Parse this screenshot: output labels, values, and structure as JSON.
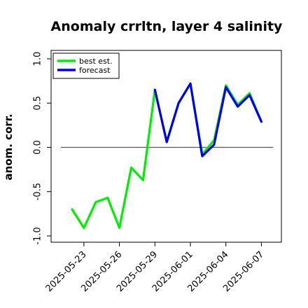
{
  "chart_data": {
    "type": "line",
    "title": "Anomaly crrltn, layer 4 salinity",
    "ylabel": "anom. corr.",
    "xlabel": "",
    "ylim": [
      -1.0,
      1.0
    ],
    "yticks": [
      -1.0,
      -0.5,
      0.0,
      0.5,
      1.0
    ],
    "ytick_labels": [
      "-1.0",
      "-0.5",
      "0.0",
      "0.5",
      "1.0"
    ],
    "x": [
      "2025-05-22",
      "2025-05-23",
      "2025-05-24",
      "2025-05-25",
      "2025-05-26",
      "2025-05-27",
      "2025-05-28",
      "2025-05-29",
      "2025-05-30",
      "2025-05-31",
      "2025-06-01",
      "2025-06-02",
      "2025-06-03",
      "2025-06-04",
      "2025-06-05",
      "2025-06-06",
      "2025-06-07"
    ],
    "xticks": [
      "2025-05-23",
      "2025-05-26",
      "2025-05-29",
      "2025-06-01",
      "2025-06-04",
      "2025-06-07"
    ],
    "highlight_tick": "2025-05-29",
    "highlight_color": "#228b22",
    "reference_line": 0.0,
    "grid": false,
    "legend_position": "top-left",
    "series": [
      {
        "name": "best est.",
        "color": "#00ee00",
        "values": [
          -0.7,
          -0.91,
          -0.62,
          -0.57,
          -0.91,
          -0.23,
          -0.37,
          0.65,
          0.06,
          0.5,
          0.72,
          -0.08,
          0.08,
          0.7,
          0.48,
          0.61,
          0.29
        ]
      },
      {
        "name": "forecast",
        "color": "#0000ee",
        "values": [
          null,
          null,
          null,
          null,
          null,
          null,
          null,
          0.65,
          0.06,
          0.5,
          0.72,
          -0.1,
          0.03,
          0.68,
          0.46,
          0.59,
          0.29
        ]
      }
    ]
  }
}
